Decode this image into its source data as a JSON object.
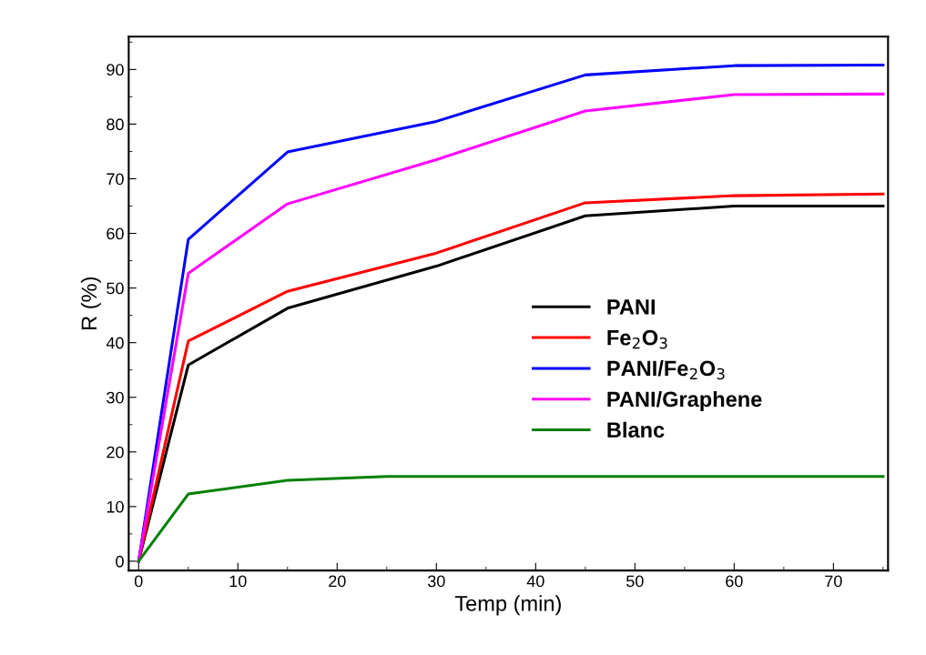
{
  "chart_data": {
    "type": "line",
    "xlabel": "Temp (min)",
    "ylabel": "R (%)",
    "x": [
      0,
      5,
      15,
      30,
      45,
      60,
      75
    ],
    "series": [
      {
        "name": "PANI",
        "color": "#000000",
        "values": [
          0,
          35.9,
          46.3,
          54,
          63.2,
          65,
          65
        ]
      },
      {
        "name": "Fe$_{2}$O$_{3}$",
        "color": "#ff0000",
        "values": [
          0,
          40.3,
          49.4,
          56.4,
          65.6,
          66.9,
          67.2
        ]
      },
      {
        "name": "PANI/Fe$_{2}$O$_{3}$",
        "color": "#0000ff",
        "values": [
          0,
          58.9,
          74.9,
          80.5,
          89,
          90.7,
          90.8
        ]
      },
      {
        "name": "PANI/Graphene",
        "color": "#ff00ff",
        "values": [
          0,
          52.7,
          65.4,
          73.5,
          82.4,
          85.4,
          85.5
        ]
      },
      {
        "name": "Blanc",
        "color": "#008000",
        "x": [
          0,
          5,
          15,
          25,
          75
        ],
        "values": [
          0,
          12.3,
          14.8,
          15.5,
          15.5
        ]
      }
    ],
    "xlim": [
      -1,
      75.5
    ],
    "ylim": [
      -1.7,
      96
    ],
    "xticks": [
      0,
      10,
      20,
      30,
      40,
      50,
      60,
      70
    ],
    "yticks": [
      0,
      10,
      20,
      30,
      40,
      50,
      60,
      70,
      80,
      90
    ],
    "grid": false,
    "legend": "center right",
    "marker": "none",
    "line_style": "solid"
  }
}
